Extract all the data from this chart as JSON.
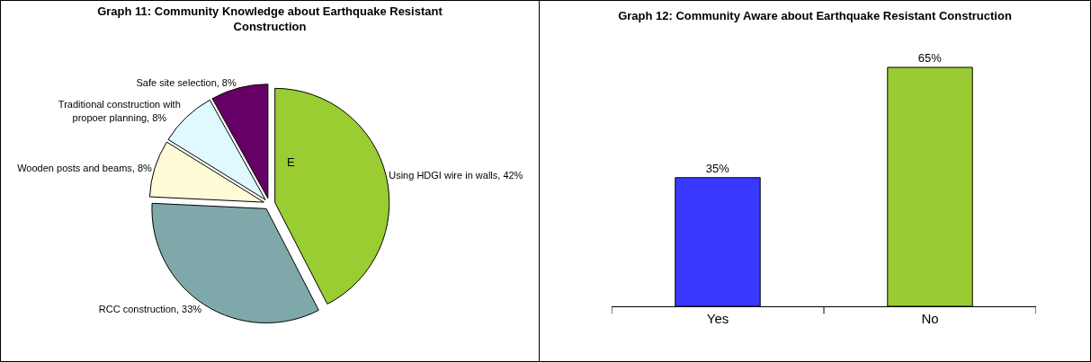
{
  "chart_data": [
    {
      "type": "pie",
      "title": "Graph 11: Community Knowledge about Earthquake Resistant Construction",
      "categories": [
        "Using HDGI wire in walls",
        "RCC construction",
        "Wooden posts and beams",
        "Traditional construction with propoer planning",
        "Safe site selection"
      ],
      "values": [
        42,
        33,
        8,
        8,
        8
      ],
      "value_labels": [
        "42%",
        "33%",
        "8%",
        "8%",
        "8%"
      ],
      "colors": [
        "#9acd32",
        "#7fa8aa",
        "#fffbd6",
        "#dff9ff",
        "#660066"
      ],
      "annotations": [
        "E"
      ],
      "legend": false
    },
    {
      "type": "bar",
      "title": "Graph 12: Community Aware about Earthquake Resistant Construction",
      "categories": [
        "Yes",
        "No"
      ],
      "values": [
        35,
        65
      ],
      "value_labels": [
        "35%",
        "65%"
      ],
      "colors": [
        "#3838ff",
        "#99cc33"
      ],
      "legend": false
    }
  ]
}
